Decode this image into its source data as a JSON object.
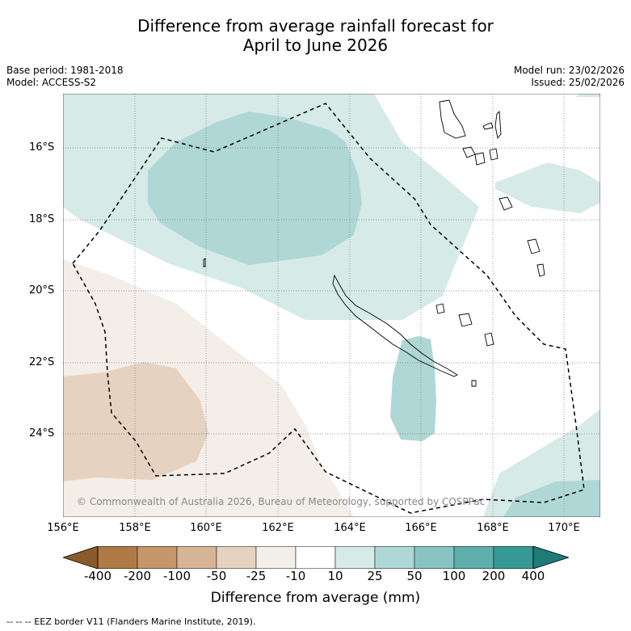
{
  "title": {
    "line1": "Difference from average rainfall forecast for",
    "line2": "April to June 2026"
  },
  "meta": {
    "base_period": "Base period: 1981-2018",
    "model": "Model: ACCESS-S2",
    "model_run": "Model run: 23/02/2026",
    "issued": "Issued: 25/02/2026"
  },
  "map": {
    "lat_labels": [
      "16°S",
      "18°S",
      "20°S",
      "22°S",
      "24°S"
    ],
    "lon_labels": [
      "156°E",
      "158°E",
      "160°E",
      "162°E",
      "164°E",
      "166°E",
      "168°E",
      "170°E"
    ],
    "copyright": "© Commonwealth of Australia 2026, Bureau of Meteorology, supported by COSPPac"
  },
  "colorbar": {
    "ticks": [
      "-400",
      "-200",
      "-100",
      "-50",
      "-25",
      "-10",
      "10",
      "25",
      "50",
      "100",
      "200",
      "400"
    ],
    "colors": [
      "#8b5a2b",
      "#b07a46",
      "#c6966a",
      "#d6b496",
      "#e6d2c0",
      "#f3eee8",
      "#ffffff",
      "#d6eae8",
      "#afd7d6",
      "#8ac4c2",
      "#5eaeab",
      "#379996",
      "#1e7b78"
    ],
    "label": "Difference from average (mm)"
  },
  "footer": "--  --  -- EEZ border V11 (Flanders Marine Institute, 2019)."
}
